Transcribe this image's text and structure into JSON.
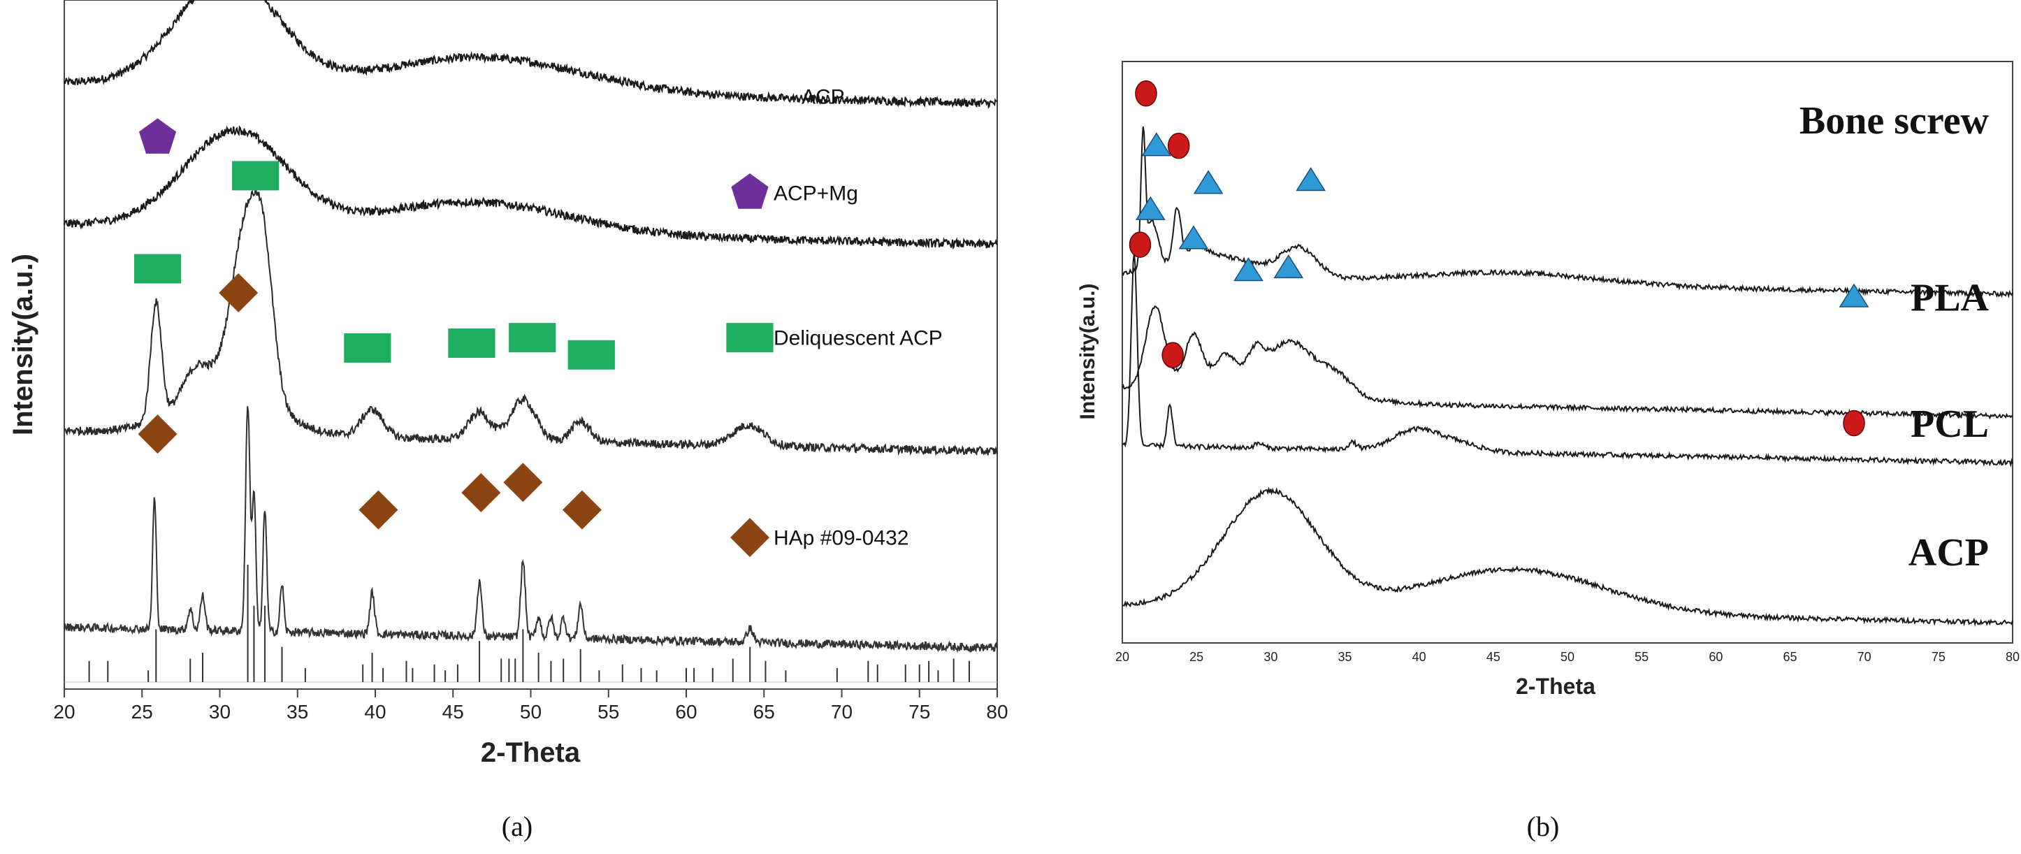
{
  "chart_data": [
    {
      "panel_label": "(a)",
      "type": "line",
      "xlabel": "2-Theta",
      "ylabel": "Intensity(a.u.)",
      "xlim": [
        20,
        80
      ],
      "x_ticks": [
        20,
        25,
        30,
        35,
        40,
        45,
        50,
        55,
        60,
        65,
        70,
        75,
        80
      ],
      "series": [
        {
          "name": "ACP",
          "color": "#1a1a1a",
          "offset": 0.88,
          "peaks": [
            {
              "x": 30.5,
              "h": 0.16,
              "w": 3.2
            },
            {
              "x": 47.0,
              "h": 0.05,
              "w": 6.5
            }
          ]
        },
        {
          "name": "ACP+Mg",
          "color": "#1a1a1a",
          "offset": 0.675,
          "peaks": [
            {
              "x": 31.0,
              "h": 0.14,
              "w": 3.3
            },
            {
              "x": 46.5,
              "h": 0.045,
              "w": 6.0
            }
          ],
          "markers": [
            {
              "x": 26.0,
              "y": 0.8,
              "shape": "pentagon"
            }
          ]
        },
        {
          "name": "Deliquescent ACP",
          "color": "#2a2a2a",
          "offset": 0.375,
          "peaks": [
            {
              "x": 25.9,
              "h": 0.17,
              "w": 0.35
            },
            {
              "x": 28.5,
              "h": 0.05,
              "w": 0.9
            },
            {
              "x": 31.8,
              "h": 0.26,
              "w": 1.0
            },
            {
              "x": 32.9,
              "h": 0.12,
              "w": 0.6
            },
            {
              "x": 30.5,
              "h": 0.06,
              "w": 3.0
            },
            {
              "x": 39.8,
              "h": 0.04,
              "w": 0.7
            },
            {
              "x": 46.7,
              "h": 0.04,
              "w": 0.7
            },
            {
              "x": 49.5,
              "h": 0.06,
              "w": 0.8
            },
            {
              "x": 53.2,
              "h": 0.03,
              "w": 0.6
            },
            {
              "x": 64.0,
              "h": 0.03,
              "w": 1.0
            }
          ],
          "markers": [
            {
              "x": 26.0,
              "y": 0.61,
              "shape": "rectangle"
            },
            {
              "x": 32.3,
              "y": 0.745,
              "shape": "rectangle"
            },
            {
              "x": 39.5,
              "y": 0.495,
              "shape": "rectangle"
            },
            {
              "x": 46.2,
              "y": 0.502,
              "shape": "rectangle"
            },
            {
              "x": 50.1,
              "y": 0.51,
              "shape": "rectangle"
            },
            {
              "x": 53.9,
              "y": 0.485,
              "shape": "rectangle"
            }
          ]
        },
        {
          "name": "HAp #09-0432",
          "color": "#333333",
          "offset": 0.09,
          "peaks": [
            {
              "x": 25.8,
              "h": 0.19,
              "w": 0.12
            },
            {
              "x": 28.1,
              "h": 0.03,
              "w": 0.15
            },
            {
              "x": 28.9,
              "h": 0.05,
              "w": 0.15
            },
            {
              "x": 31.8,
              "h": 0.33,
              "w": 0.14
            },
            {
              "x": 32.2,
              "h": 0.2,
              "w": 0.12
            },
            {
              "x": 32.9,
              "h": 0.18,
              "w": 0.12
            },
            {
              "x": 34.0,
              "h": 0.07,
              "w": 0.12
            },
            {
              "x": 39.8,
              "h": 0.06,
              "w": 0.15
            },
            {
              "x": 46.7,
              "h": 0.08,
              "w": 0.15
            },
            {
              "x": 49.5,
              "h": 0.11,
              "w": 0.15
            },
            {
              "x": 50.5,
              "h": 0.03,
              "w": 0.15
            },
            {
              "x": 51.3,
              "h": 0.03,
              "w": 0.15
            },
            {
              "x": 52.1,
              "h": 0.03,
              "w": 0.15
            },
            {
              "x": 53.2,
              "h": 0.05,
              "w": 0.15
            },
            {
              "x": 64.1,
              "h": 0.02,
              "w": 0.2
            }
          ],
          "markers": [
            {
              "x": 26.0,
              "y": 0.37,
              "shape": "diamond"
            },
            {
              "x": 31.2,
              "y": 0.575,
              "shape": "diamond"
            },
            {
              "x": 40.2,
              "y": 0.26,
              "shape": "diamond"
            },
            {
              "x": 46.8,
              "y": 0.285,
              "shape": "diamond"
            },
            {
              "x": 49.5,
              "y": 0.3,
              "shape": "diamond"
            },
            {
              "x": 53.3,
              "y": 0.26,
              "shape": "diamond"
            }
          ]
        }
      ],
      "legend": [
        {
          "label": "ACP",
          "shape": "none",
          "y": 0.86
        },
        {
          "label": "ACP+Mg",
          "shape": "pentagon",
          "y": 0.72
        },
        {
          "label": "Deliquescent ACP",
          "shape": "rectangle",
          "y": 0.51
        },
        {
          "label": "HAp #09-0432",
          "shape": "diamond",
          "y": 0.22
        }
      ],
      "reference_sticks": [
        {
          "x": 21.6,
          "h": 0.18
        },
        {
          "x": 22.8,
          "h": 0.18
        },
        {
          "x": 25.4,
          "h": 0.1
        },
        {
          "x": 25.9,
          "h": 0.45
        },
        {
          "x": 28.1,
          "h": 0.2
        },
        {
          "x": 28.9,
          "h": 0.25
        },
        {
          "x": 31.8,
          "h": 1.0
        },
        {
          "x": 32.2,
          "h": 0.65
        },
        {
          "x": 32.9,
          "h": 0.65
        },
        {
          "x": 34.0,
          "h": 0.3
        },
        {
          "x": 35.5,
          "h": 0.12
        },
        {
          "x": 39.2,
          "h": 0.15
        },
        {
          "x": 39.8,
          "h": 0.25
        },
        {
          "x": 40.5,
          "h": 0.12
        },
        {
          "x": 42.0,
          "h": 0.18
        },
        {
          "x": 42.4,
          "h": 0.12
        },
        {
          "x": 43.8,
          "h": 0.15
        },
        {
          "x": 44.5,
          "h": 0.1
        },
        {
          "x": 45.3,
          "h": 0.15
        },
        {
          "x": 46.7,
          "h": 0.35
        },
        {
          "x": 48.1,
          "h": 0.2
        },
        {
          "x": 48.6,
          "h": 0.2
        },
        {
          "x": 49.0,
          "h": 0.2
        },
        {
          "x": 49.5,
          "h": 0.45
        },
        {
          "x": 50.5,
          "h": 0.25
        },
        {
          "x": 51.3,
          "h": 0.18
        },
        {
          "x": 52.1,
          "h": 0.2
        },
        {
          "x": 53.2,
          "h": 0.28
        },
        {
          "x": 54.4,
          "h": 0.1
        },
        {
          "x": 55.9,
          "h": 0.15
        },
        {
          "x": 57.1,
          "h": 0.12
        },
        {
          "x": 58.1,
          "h": 0.1
        },
        {
          "x": 60.0,
          "h": 0.12
        },
        {
          "x": 60.5,
          "h": 0.12
        },
        {
          "x": 61.7,
          "h": 0.12
        },
        {
          "x": 63.0,
          "h": 0.2
        },
        {
          "x": 64.1,
          "h": 0.3
        },
        {
          "x": 65.1,
          "h": 0.18
        },
        {
          "x": 66.4,
          "h": 0.1
        },
        {
          "x": 69.7,
          "h": 0.12
        },
        {
          "x": 71.7,
          "h": 0.18
        },
        {
          "x": 72.3,
          "h": 0.15
        },
        {
          "x": 74.1,
          "h": 0.15
        },
        {
          "x": 75.0,
          "h": 0.15
        },
        {
          "x": 75.6,
          "h": 0.18
        },
        {
          "x": 76.2,
          "h": 0.1
        },
        {
          "x": 77.2,
          "h": 0.2
        },
        {
          "x": 78.2,
          "h": 0.18
        }
      ]
    },
    {
      "panel_label": "(b)",
      "type": "line",
      "xlabel": "2-Theta",
      "ylabel": "Intensity(a.u.)",
      "xlim": [
        20,
        80
      ],
      "x_ticks": [
        20,
        25,
        30,
        35,
        40,
        45,
        50,
        55,
        60,
        65,
        70,
        75,
        80
      ],
      "series": [
        {
          "name": "Bone screw",
          "color": "#1a1a1a",
          "offset": 0.63,
          "peaks": [
            {
              "x": 21.4,
              "h": 0.22,
              "w": 0.15
            },
            {
              "x": 22.0,
              "h": 0.08,
              "w": 0.4
            },
            {
              "x": 23.7,
              "h": 0.09,
              "w": 0.25
            },
            {
              "x": 25.0,
              "h": 0.02,
              "w": 0.6
            },
            {
              "x": 31.9,
              "h": 0.05,
              "w": 1.2
            },
            {
              "x": 26.0,
              "h": 0.04,
              "w": 3.0
            },
            {
              "x": 46.0,
              "h": 0.02,
              "w": 6.0
            }
          ],
          "markers": [
            {
              "x": 21.6,
              "y": 0.945,
              "shape": "circle"
            },
            {
              "x": 22.3,
              "y": 0.855,
              "shape": "triangle"
            },
            {
              "x": 23.8,
              "y": 0.855,
              "shape": "circle"
            },
            {
              "x": 25.8,
              "y": 0.79,
              "shape": "triangle"
            },
            {
              "x": 32.7,
              "y": 0.795,
              "shape": "triangle"
            }
          ]
        },
        {
          "name": "PLA",
          "color": "#1a1a1a",
          "offset": 0.42,
          "peaks": [
            {
              "x": 22.2,
              "h": 0.13,
              "w": 0.6
            },
            {
              "x": 24.8,
              "h": 0.07,
              "w": 0.5
            },
            {
              "x": 27.0,
              "h": 0.03,
              "w": 0.6
            },
            {
              "x": 29.0,
              "h": 0.035,
              "w": 0.5
            },
            {
              "x": 31.5,
              "h": 0.07,
              "w": 1.5
            },
            {
              "x": 34.5,
              "h": 0.03,
              "w": 1.0
            },
            {
              "x": 27.0,
              "h": 0.05,
              "w": 5.0
            }
          ],
          "markers": [
            {
              "x": 21.9,
              "y": 0.745,
              "shape": "triangle"
            },
            {
              "x": 24.8,
              "y": 0.695,
              "shape": "triangle"
            },
            {
              "x": 28.5,
              "y": 0.64,
              "shape": "triangle"
            },
            {
              "x": 31.2,
              "y": 0.645,
              "shape": "triangle"
            }
          ]
        },
        {
          "name": "PCL",
          "color": "#1a1a1a",
          "offset": 0.34,
          "peaks": [
            {
              "x": 20.8,
              "h": 0.33,
              "w": 0.2
            },
            {
              "x": 23.2,
              "h": 0.07,
              "w": 0.18
            },
            {
              "x": 29.2,
              "h": 0.008,
              "w": 0.3
            },
            {
              "x": 35.5,
              "h": 0.012,
              "w": 0.3
            },
            {
              "x": 39.7,
              "h": 0.035,
              "w": 1.5
            },
            {
              "x": 42.5,
              "h": 0.015,
              "w": 1.5
            }
          ],
          "markers": [
            {
              "x": 21.2,
              "y": 0.685,
              "shape": "circle"
            },
            {
              "x": 23.4,
              "y": 0.495,
              "shape": "circle"
            }
          ]
        },
        {
          "name": "ACP",
          "color": "#1a1a1a",
          "offset": 0.065,
          "peaks": [
            {
              "x": 30.0,
              "h": 0.2,
              "w": 3.2
            },
            {
              "x": 46.5,
              "h": 0.075,
              "w": 6.0
            }
          ]
        }
      ],
      "legend": [
        {
          "label": "Bone screw",
          "shape": "none",
          "y": 0.9
        },
        {
          "label": "PLA",
          "shape": "triangle",
          "y": 0.595
        },
        {
          "label": "PCL",
          "shape": "circle",
          "y": 0.378
        },
        {
          "label": "ACP",
          "shape": "none",
          "y": 0.157
        }
      ]
    }
  ],
  "colors": {
    "pentagon": "#6d2f9a",
    "rectangle": "#1fae60",
    "diamond": "#8b4513",
    "triangle": "#2e9ad6",
    "circle": "#cc1a1a"
  }
}
